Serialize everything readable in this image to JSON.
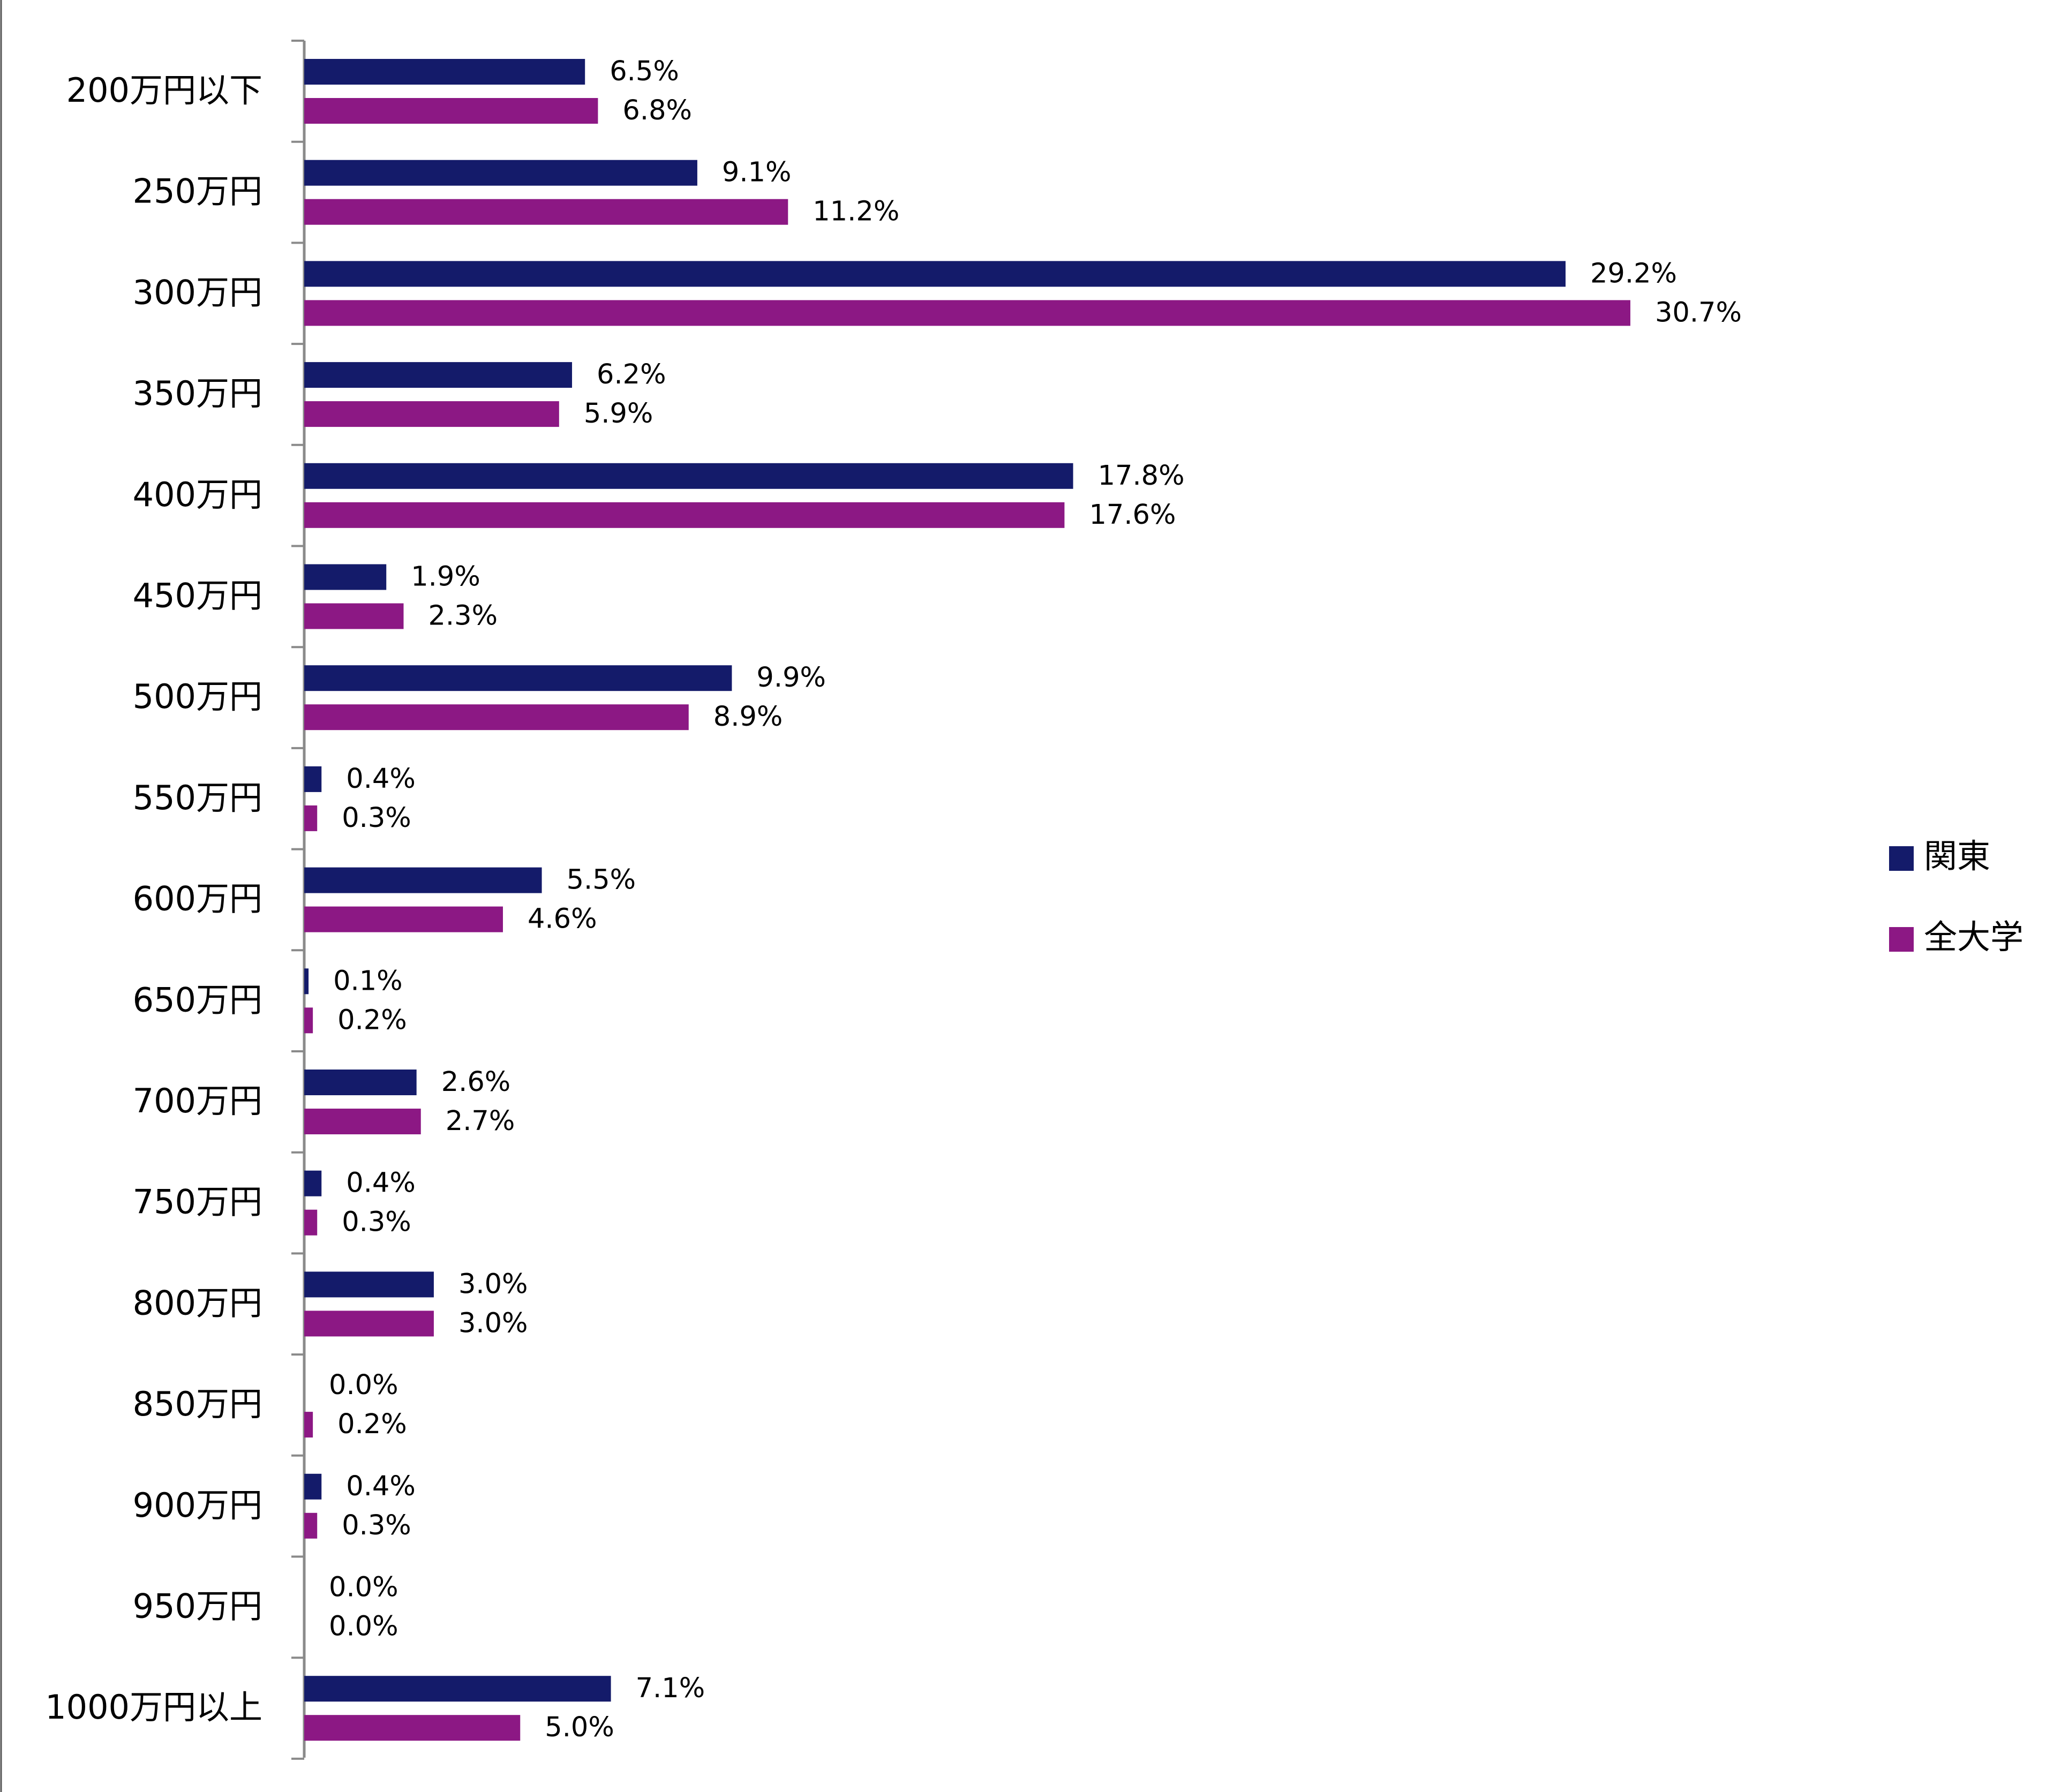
{
  "chart_data": {
    "type": "bar",
    "orientation": "horizontal",
    "categories": [
      "200万円以下",
      "250万円",
      "300万円",
      "350万円",
      "400万円",
      "450万円",
      "500万円",
      "550万円",
      "600万円",
      "650万円",
      "700万円",
      "750万円",
      "800万円",
      "850万円",
      "900万円",
      "950万円",
      "1000万円以上"
    ],
    "series": [
      {
        "name": "関東",
        "color": "#141b6a",
        "values": [
          6.5,
          9.1,
          29.2,
          6.2,
          17.8,
          1.9,
          9.9,
          0.4,
          5.5,
          0.1,
          2.6,
          0.4,
          3.0,
          0.0,
          0.4,
          0.0,
          7.1
        ],
        "labels": [
          "6.5%",
          "9.1%",
          "29.2%",
          "6.2%",
          "17.8%",
          "1.9%",
          "9.9%",
          "0.4%",
          "5.5%",
          "0.1%",
          "2.6%",
          "0.4%",
          "3.0%",
          "0.0%",
          "0.4%",
          "0.0%",
          "7.1%"
        ]
      },
      {
        "name": "全大学",
        "color": "#8c1884",
        "values": [
          6.8,
          11.2,
          30.7,
          5.9,
          17.6,
          2.3,
          8.9,
          0.3,
          4.6,
          0.2,
          2.7,
          0.3,
          3.0,
          0.2,
          0.3,
          0.0,
          5.0
        ],
        "labels": [
          "6.8%",
          "11.2%",
          "30.7%",
          "5.9%",
          "17.6%",
          "2.3%",
          "8.9%",
          "0.3%",
          "4.6%",
          "0.2%",
          "2.7%",
          "0.3%",
          "3.0%",
          "0.2%",
          "0.3%",
          "0.0%",
          "5.0%"
        ]
      }
    ],
    "xlim": [
      0,
      31
    ],
    "grid": false,
    "legend_position": "right"
  },
  "colors": {
    "axis": "#8a8a8a",
    "frame": "#555555"
  }
}
